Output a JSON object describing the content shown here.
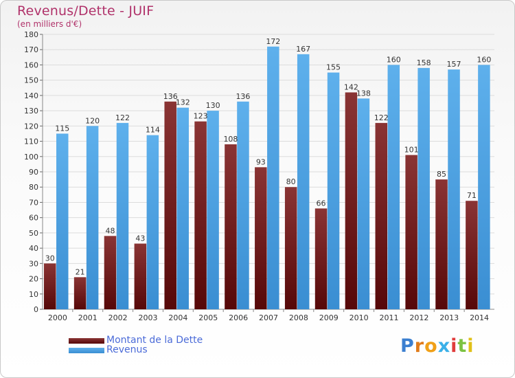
{
  "header": {
    "title": "Revenus/Dette - JUIF",
    "subtitle": "(en milliers d'€)"
  },
  "legend": [
    {
      "label": "Montant de la Dette",
      "color": "#6b1414"
    },
    {
      "label": "Revenus",
      "color": "#4a9ee0"
    }
  ],
  "logo": {
    "text": "Proxiti",
    "letter_colors": [
      "#3b7fd0",
      "#e07b1a",
      "#f0a018",
      "#3bb0e8",
      "#e03c3c",
      "#7cc242",
      "#e0c018"
    ]
  },
  "chart_data": {
    "type": "bar",
    "title": "Revenus/Dette - JUIF",
    "subtitle": "(en milliers d'€)",
    "categories": [
      "2000",
      "2001",
      "2002",
      "2003",
      "2004",
      "2005",
      "2006",
      "2007",
      "2008",
      "2009",
      "2010",
      "2011",
      "2012",
      "2013",
      "2014"
    ],
    "series": [
      {
        "name": "Montant de la Dette",
        "color": "#6b1414",
        "values": [
          30,
          21,
          48,
          43,
          136,
          123,
          108,
          93,
          80,
          66,
          142,
          122,
          101,
          85,
          71
        ]
      },
      {
        "name": "Revenus",
        "color": "#4a9ee0",
        "values": [
          115,
          120,
          122,
          114,
          132,
          130,
          136,
          172,
          167,
          155,
          138,
          160,
          158,
          157,
          160
        ]
      }
    ],
    "ylim": [
      0,
      180
    ],
    "ytick_step": 10,
    "grid": true,
    "legend_position": "bottom-left"
  }
}
